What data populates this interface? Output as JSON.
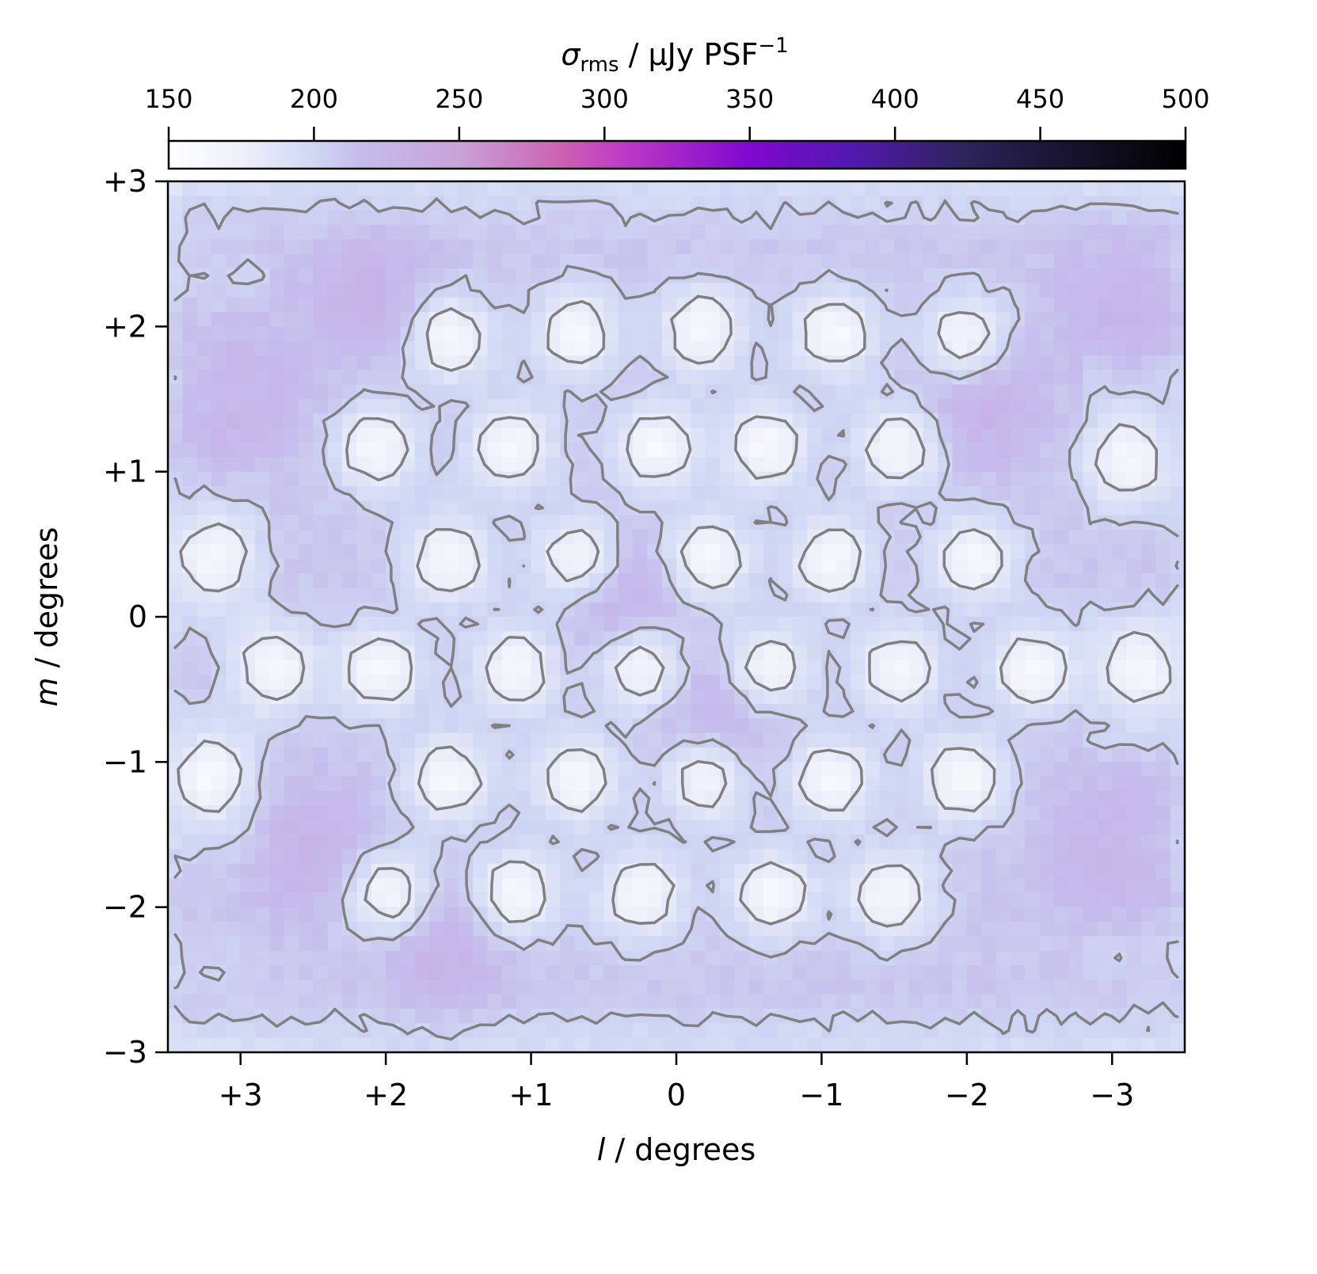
{
  "chart_data": {
    "type": "heatmap",
    "title": "",
    "colorbar": {
      "label_symbol": "σ",
      "label_subscript": "rms",
      "label_unit": " / μJy PSF",
      "label_superscript": "−1",
      "range": [
        150,
        500
      ],
      "ticks": [
        "150",
        "200",
        "250",
        "300",
        "350",
        "400",
        "450",
        "500"
      ],
      "tick_values": [
        150,
        200,
        250,
        300,
        350,
        400,
        450,
        500
      ],
      "placement": "top"
    },
    "colormap": [
      [
        150,
        "#ffffff"
      ],
      [
        175,
        "#eef0fa"
      ],
      [
        200,
        "#d0d8f4"
      ],
      [
        215,
        "#c6bdec"
      ],
      [
        250,
        "#c8a2d8"
      ],
      [
        285,
        "#cc62b2"
      ],
      [
        305,
        "#c03cc4"
      ],
      [
        350,
        "#8008d0"
      ],
      [
        385,
        "#5218b0"
      ],
      [
        425,
        "#2c2458"
      ],
      [
        500,
        "#000000"
      ]
    ],
    "xlabel_italic": "l",
    "xlabel_rest": " / degrees",
    "ylabel_italic": "m",
    "ylabel_rest": " / degrees",
    "xlim": [
      3.5,
      -3.5
    ],
    "ylim": [
      -3,
      3
    ],
    "xticks": [
      "+3",
      "+2",
      "+1",
      "0",
      "−1",
      "−2",
      "−3"
    ],
    "xtick_values": [
      3,
      2,
      1,
      0,
      -1,
      -2,
      -3
    ],
    "yticks": [
      "+3",
      "+2",
      "+1",
      "0",
      "−1",
      "−2",
      "−3"
    ],
    "ytick_values": [
      3,
      2,
      1,
      0,
      -1,
      -2,
      -3
    ],
    "background_level": 210,
    "contour_levels": [
      182,
      203
    ],
    "contour_color": "#808080",
    "low_noise_minima": [
      [
        1.56,
        1.92
      ],
      [
        0.69,
        1.95
      ],
      [
        -0.18,
        1.98
      ],
      [
        -1.09,
        1.95
      ],
      [
        -1.99,
        1.92
      ],
      [
        2.07,
        1.17
      ],
      [
        1.14,
        1.17
      ],
      [
        0.13,
        1.17
      ],
      [
        -0.63,
        1.17
      ],
      [
        -1.53,
        1.17
      ],
      [
        -3.1,
        1.1
      ],
      [
        3.18,
        0.4
      ],
      [
        1.57,
        0.4
      ],
      [
        0.69,
        0.4
      ],
      [
        -0.22,
        0.4
      ],
      [
        -1.07,
        0.4
      ],
      [
        -2.05,
        0.4
      ],
      [
        2.77,
        -0.36
      ],
      [
        2.04,
        -0.36
      ],
      [
        1.11,
        -0.36
      ],
      [
        0.24,
        -0.36
      ],
      [
        -0.63,
        -0.36
      ],
      [
        -1.53,
        -0.36
      ],
      [
        -2.46,
        -0.36
      ],
      [
        -3.19,
        -0.36
      ],
      [
        3.21,
        -1.12
      ],
      [
        1.57,
        -1.12
      ],
      [
        0.69,
        -1.12
      ],
      [
        -0.2,
        -1.12
      ],
      [
        -1.07,
        -1.12
      ],
      [
        -1.97,
        -1.12
      ],
      [
        1.98,
        -1.91
      ],
      [
        1.11,
        -1.91
      ],
      [
        0.24,
        -1.91
      ],
      [
        -0.66,
        -1.91
      ],
      [
        -1.48,
        -1.91
      ]
    ],
    "high_noise_maxima": [
      [
        2.1,
        2.2
      ],
      [
        -3.1,
        2.2
      ],
      [
        2.5,
        -1.6
      ],
      [
        -3.0,
        -1.6
      ],
      [
        1.6,
        -2.3
      ],
      [
        3.0,
        1.5
      ],
      [
        -2.1,
        1.5
      ],
      [
        0.35,
        0.1
      ],
      [
        -0.3,
        -0.7
      ]
    ]
  }
}
